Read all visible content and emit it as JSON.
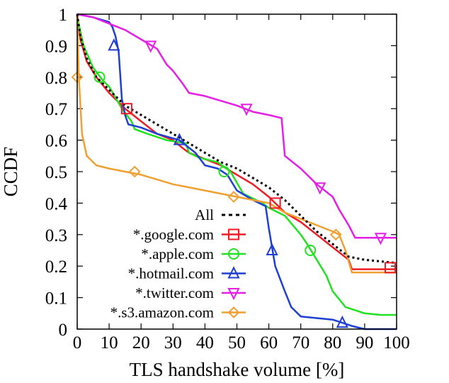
{
  "chart_data": {
    "type": "line",
    "title": "",
    "xlabel": "TLS handshake volume [%]",
    "ylabel": "CCDF",
    "xlim": [
      0,
      100
    ],
    "ylim": [
      0,
      1
    ],
    "x_ticks": [
      "0",
      "10",
      "20",
      "30",
      "40",
      "50",
      "60",
      "70",
      "80",
      "90",
      "100"
    ],
    "y_ticks": [
      "0",
      "0.1",
      "0.2",
      "0.3",
      "0.4",
      "0.5",
      "0.6",
      "0.7",
      "0.8",
      "0.9",
      "1"
    ],
    "grid": false,
    "legend_position": "bottom-center",
    "series": [
      {
        "name": "All",
        "color": "#000000",
        "dash": "dotted",
        "marker": "none",
        "points": [
          [
            0,
            1.0
          ],
          [
            1,
            0.93
          ],
          [
            3,
            0.86
          ],
          [
            6,
            0.8
          ],
          [
            10,
            0.76
          ],
          [
            15,
            0.71
          ],
          [
            20,
            0.68
          ],
          [
            25,
            0.65
          ],
          [
            30,
            0.62
          ],
          [
            35,
            0.59
          ],
          [
            40,
            0.56
          ],
          [
            45,
            0.53
          ],
          [
            50,
            0.51
          ],
          [
            55,
            0.48
          ],
          [
            60,
            0.45
          ],
          [
            65,
            0.41
          ],
          [
            70,
            0.36
          ],
          [
            75,
            0.31
          ],
          [
            80,
            0.27
          ],
          [
            85,
            0.23
          ],
          [
            90,
            0.22
          ],
          [
            95,
            0.215
          ],
          [
            100,
            0.21
          ]
        ]
      },
      {
        "name": "*.google.com",
        "color": "#ee1c25",
        "dash": "solid",
        "marker": "square",
        "markers_at": [
          [
            15.5,
            0.7
          ],
          [
            62,
            0.4
          ],
          [
            98,
            0.195
          ]
        ],
        "points": [
          [
            0,
            1.0
          ],
          [
            1,
            0.92
          ],
          [
            3,
            0.85
          ],
          [
            6,
            0.8
          ],
          [
            10,
            0.75
          ],
          [
            15,
            0.7
          ],
          [
            20,
            0.66
          ],
          [
            25,
            0.62
          ],
          [
            30,
            0.6
          ],
          [
            33,
            0.575
          ],
          [
            35,
            0.56
          ],
          [
            40,
            0.54
          ],
          [
            45,
            0.52
          ],
          [
            50,
            0.49
          ],
          [
            55,
            0.46
          ],
          [
            60,
            0.42
          ],
          [
            62,
            0.4
          ],
          [
            65,
            0.37
          ],
          [
            70,
            0.34
          ],
          [
            75,
            0.3
          ],
          [
            80,
            0.26
          ],
          [
            85,
            0.22
          ],
          [
            86,
            0.19
          ],
          [
            90,
            0.19
          ],
          [
            95,
            0.19
          ],
          [
            100,
            0.19
          ]
        ]
      },
      {
        "name": "*.apple.com",
        "color": "#22e022",
        "dash": "solid",
        "marker": "circle",
        "markers_at": [
          [
            7,
            0.8
          ],
          [
            46,
            0.5
          ],
          [
            73,
            0.25
          ]
        ],
        "points": [
          [
            0,
            0.99
          ],
          [
            2,
            0.9
          ],
          [
            5,
            0.83
          ],
          [
            8,
            0.79
          ],
          [
            10,
            0.77
          ],
          [
            14,
            0.7
          ],
          [
            17,
            0.66
          ],
          [
            18,
            0.635
          ],
          [
            22,
            0.62
          ],
          [
            28,
            0.6
          ],
          [
            34,
            0.59
          ],
          [
            35,
            0.56
          ],
          [
            38,
            0.545
          ],
          [
            44,
            0.53
          ],
          [
            48,
            0.5
          ],
          [
            52,
            0.43
          ],
          [
            58,
            0.4
          ],
          [
            60,
            0.385
          ],
          [
            65,
            0.36
          ],
          [
            70,
            0.3
          ],
          [
            72,
            0.27
          ],
          [
            75,
            0.22
          ],
          [
            78,
            0.17
          ],
          [
            80,
            0.12
          ],
          [
            84,
            0.07
          ],
          [
            90,
            0.05
          ],
          [
            95,
            0.045
          ],
          [
            100,
            0.045
          ]
        ]
      },
      {
        "name": "*.hotmail.com",
        "color": "#1f3fd1",
        "dash": "solid",
        "marker": "triangle",
        "markers_at": [
          [
            11.5,
            0.9
          ],
          [
            32,
            0.6
          ],
          [
            61,
            0.25
          ],
          [
            83,
            0.02
          ]
        ],
        "points": [
          [
            0,
            1.0
          ],
          [
            5,
            0.99
          ],
          [
            10,
            0.975
          ],
          [
            11,
            0.96
          ],
          [
            12,
            0.93
          ],
          [
            13,
            0.88
          ],
          [
            14,
            0.73
          ],
          [
            15,
            0.68
          ],
          [
            16,
            0.65
          ],
          [
            20,
            0.64
          ],
          [
            25,
            0.62
          ],
          [
            32,
            0.6
          ],
          [
            37,
            0.56
          ],
          [
            40,
            0.52
          ],
          [
            44,
            0.51
          ],
          [
            47,
            0.49
          ],
          [
            50,
            0.44
          ],
          [
            55,
            0.41
          ],
          [
            59,
            0.39
          ],
          [
            60,
            0.32
          ],
          [
            62,
            0.2
          ],
          [
            65,
            0.12
          ],
          [
            67,
            0.07
          ],
          [
            70,
            0.04
          ],
          [
            75,
            0.035
          ],
          [
            80,
            0.03
          ],
          [
            83,
            0.02
          ],
          [
            86,
            0.01
          ],
          [
            90,
            0.0
          ],
          [
            100,
            0.0
          ]
        ]
      },
      {
        "name": "*.twitter.com",
        "color": "#e61ee6",
        "dash": "solid",
        "marker": "triangle-down",
        "markers_at": [
          [
            23,
            0.9
          ],
          [
            53,
            0.7
          ],
          [
            76,
            0.45
          ],
          [
            95,
            0.29
          ]
        ],
        "points": [
          [
            0,
            1.0
          ],
          [
            5,
            0.99
          ],
          [
            10,
            0.97
          ],
          [
            15,
            0.95
          ],
          [
            20,
            0.92
          ],
          [
            25,
            0.89
          ],
          [
            28,
            0.84
          ],
          [
            30,
            0.82
          ],
          [
            33,
            0.78
          ],
          [
            35,
            0.75
          ],
          [
            40,
            0.74
          ],
          [
            50,
            0.71
          ],
          [
            55,
            0.69
          ],
          [
            60,
            0.68
          ],
          [
            64,
            0.67
          ],
          [
            65,
            0.55
          ],
          [
            70,
            0.51
          ],
          [
            75,
            0.46
          ],
          [
            80,
            0.42
          ],
          [
            82,
            0.38
          ],
          [
            85,
            0.33
          ],
          [
            87,
            0.29
          ],
          [
            90,
            0.29
          ],
          [
            95,
            0.29
          ],
          [
            100,
            0.29
          ]
        ]
      },
      {
        "name": "*.s3.amazon.com",
        "color": "#f0a030",
        "dash": "solid",
        "marker": "diamond",
        "markers_at": [
          [
            0,
            0.8
          ],
          [
            18,
            0.5
          ],
          [
            49,
            0.42
          ],
          [
            81,
            0.3
          ]
        ],
        "points": [
          [
            0,
            1.0
          ],
          [
            0.5,
            0.8
          ],
          [
            1.5,
            0.62
          ],
          [
            3,
            0.55
          ],
          [
            6,
            0.52
          ],
          [
            10,
            0.51
          ],
          [
            15,
            0.5
          ],
          [
            20,
            0.49
          ],
          [
            25,
            0.475
          ],
          [
            30,
            0.46
          ],
          [
            40,
            0.44
          ],
          [
            50,
            0.42
          ],
          [
            55,
            0.41
          ],
          [
            60,
            0.4
          ],
          [
            65,
            0.37
          ],
          [
            70,
            0.35
          ],
          [
            75,
            0.33
          ],
          [
            80,
            0.31
          ],
          [
            82,
            0.3
          ],
          [
            84,
            0.25
          ],
          [
            86,
            0.18
          ],
          [
            90,
            0.18
          ],
          [
            95,
            0.18
          ],
          [
            100,
            0.18
          ]
        ]
      }
    ]
  }
}
